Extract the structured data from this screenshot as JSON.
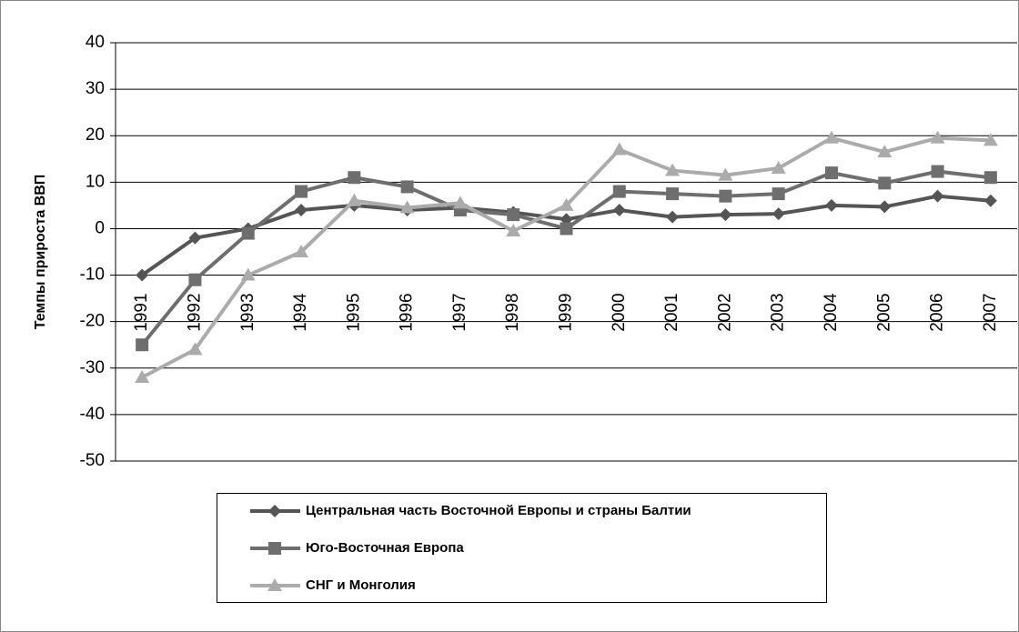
{
  "chart_data": {
    "type": "line",
    "y_label": "Темпы прироста ВВП",
    "categories": [
      "1991",
      "1992",
      "1993",
      "1994",
      "1995",
      "1996",
      "1997",
      "1998",
      "1999",
      "2000",
      "2001",
      "2002",
      "2003",
      "2004",
      "2005",
      "2006",
      "2007"
    ],
    "series": [
      {
        "name": "Центральная часть Восточной Европы и страны Балтии",
        "color": "#555555",
        "marker": "diamond",
        "values": [
          -10,
          -2,
          0,
          4,
          5,
          4,
          4.5,
          3.5,
          2,
          4,
          2.5,
          3,
          3.2,
          5,
          4.7,
          7,
          6
        ]
      },
      {
        "name": "Юго-Восточная Европа",
        "color": "#6e6e6e",
        "marker": "square",
        "values": [
          -25,
          -11,
          -1,
          8,
          11,
          9,
          4,
          3,
          0,
          8,
          7.5,
          7,
          7.5,
          12,
          9.8,
          12.3,
          11
        ]
      },
      {
        "name": "СНГ и Монголия",
        "color": "#ababab",
        "marker": "triangle",
        "values": [
          -32,
          -26,
          -10,
          -5,
          6,
          4.5,
          5.5,
          -0.5,
          5,
          17,
          12.5,
          11.5,
          13,
          19.5,
          16.5,
          19.5,
          19
        ]
      }
    ],
    "ylim": [
      -50,
      40
    ],
    "yticks": [
      -50,
      -40,
      -30,
      -20,
      -10,
      0,
      10,
      20,
      30,
      40
    ],
    "grid": true,
    "legend": "bottom"
  }
}
